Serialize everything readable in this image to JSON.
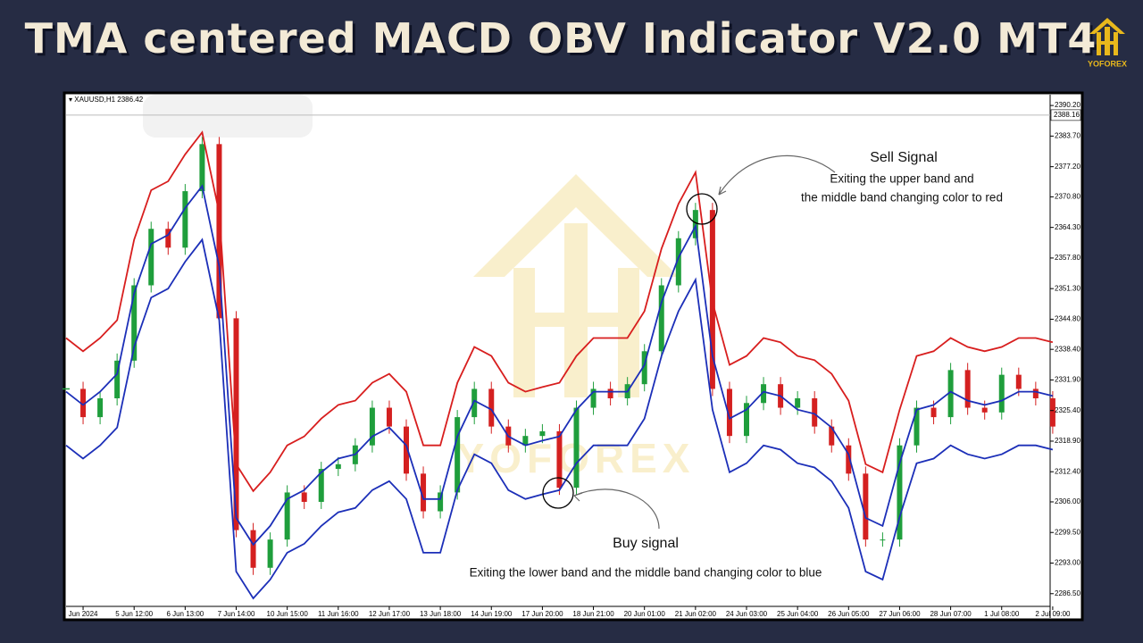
{
  "header": {
    "title": "TMA centered MACD OBV Indicator V2.0 MT4",
    "brand": "YOFOREX"
  },
  "chart_data": {
    "type": "candlestick",
    "symbol": "XAUUSD,H1",
    "bid": 2386.42,
    "current_price": 2388.16,
    "watermark": "YOFOREX",
    "up_color": "#1f9e3c",
    "down_color": "#d42020",
    "categories": [
      null,
      "Jun 2024",
      null,
      null,
      "5 Jun 12:00",
      null,
      null,
      "6 Jun 13:00",
      null,
      null,
      "7 Jun 14:00",
      null,
      null,
      "10 Jun 15:00",
      null,
      null,
      "11 Jun 16:00",
      null,
      null,
      "12 Jun 17:00",
      null,
      null,
      "13 Jun 18:00",
      null,
      null,
      "14 Jun 19:00",
      null,
      null,
      "17 Jun 20:00",
      null,
      null,
      "18 Jun 21:00",
      null,
      null,
      "20 Jun 01:00",
      null,
      null,
      "21 Jun 02:00",
      null,
      null,
      "24 Jun 03:00",
      null,
      null,
      "25 Jun 04:00",
      null,
      null,
      "26 Jun 05:00",
      null,
      null,
      "27 Jun 06:00",
      null,
      null,
      "28 Jun 07:00",
      null,
      null,
      "1 Jul 08:00",
      null,
      null,
      "2 Jul 09:00"
    ],
    "series": [
      {
        "color": "#1f9e3c",
        "values": [
          2330,
          2324,
          2328,
          2336,
          2352,
          2364,
          2360,
          2372,
          2382,
          2345,
          2300,
          2292,
          2298,
          2308,
          2306,
          2313,
          2314,
          2318,
          2326,
          2322,
          2312,
          2304,
          2308,
          2324,
          2330,
          2322,
          2318,
          2320,
          2321,
          2309,
          2326,
          2330,
          2328,
          2331,
          2338,
          2352,
          2362,
          2368,
          2330,
          2320,
          2327,
          2331,
          2326,
          2328,
          2322,
          2318,
          2312,
          2298,
          2298,
          2318,
          2326,
          2324,
          2334,
          2326,
          2325,
          2333,
          2330,
          2328,
          2322
        ]
      },
      {
        "color": "#d81e1e",
        "values": [
          2340.8,
          2338.0,
          2340.8,
          2344.6,
          2361.7,
          2372.2,
          2374.1,
          2379.8,
          2384.5,
          2367.4,
          2314.0,
          2308.3,
          2312.3,
          2318.0,
          2319.9,
          2323.7,
          2326.6,
          2327.5,
          2331.3,
          2333.2,
          2329.4,
          2318.0,
          2318.0,
          2331.3,
          2338.9,
          2337.0,
          2331.3,
          2329.4,
          2330.4,
          2331.3,
          2337.0,
          2340.8,
          2340.8,
          2340.8,
          2346.5,
          2359.8,
          2369.3,
          2376.0,
          2348.4,
          2335.1,
          2337.0,
          2340.8,
          2339.9,
          2337.0,
          2336.1,
          2333.2,
          2327.5,
          2314.0,
          2312.3,
          2325.6,
          2337.0,
          2338.0,
          2340.8,
          2338.9,
          2338.0,
          2338.9,
          2340.8,
          2340.8,
          2339.9
        ]
      },
      {
        "color": "#1c2fb8",
        "values": [
          2329.4,
          2326.6,
          2329.4,
          2333.2,
          2350.3,
          2360.8,
          2362.7,
          2368.4,
          2373.1,
          2356.0,
          2302.6,
          2296.9,
          2300.9,
          2306.6,
          2308.5,
          2312.3,
          2315.2,
          2316.1,
          2319.9,
          2321.8,
          2318.0,
          2306.6,
          2306.6,
          2319.9,
          2327.5,
          2325.6,
          2319.9,
          2318.0,
          2319.0,
          2319.9,
          2325.6,
          2329.4,
          2329.4,
          2329.4,
          2335.1,
          2348.4,
          2357.9,
          2364.6,
          2337.0,
          2323.7,
          2325.6,
          2329.4,
          2328.5,
          2325.6,
          2324.7,
          2321.8,
          2316.1,
          2302.6,
          2300.9,
          2314.2,
          2325.6,
          2326.6,
          2329.4,
          2327.5,
          2326.6,
          2327.5,
          2329.4,
          2329.4,
          2328.5
        ]
      },
      {
        "color": "#1c2fb8",
        "values": [
          2318.0,
          2315.2,
          2318.0,
          2321.8,
          2338.9,
          2349.4,
          2351.3,
          2357.0,
          2361.7,
          2344.6,
          2291.2,
          2285.5,
          2289.5,
          2295.2,
          2297.1,
          2300.9,
          2303.8,
          2304.7,
          2308.5,
          2310.4,
          2306.6,
          2295.2,
          2295.2,
          2308.5,
          2316.1,
          2314.2,
          2308.5,
          2306.6,
          2307.6,
          2308.5,
          2314.2,
          2318.0,
          2318.0,
          2318.0,
          2323.7,
          2337.0,
          2346.5,
          2353.2,
          2325.6,
          2312.3,
          2314.2,
          2318.0,
          2317.1,
          2314.2,
          2313.3,
          2310.4,
          2304.7,
          2291.2,
          2289.5,
          2302.8,
          2314.2,
          2315.2,
          2318.0,
          2316.1,
          2315.2,
          2316.1,
          2318.0,
          2318.0,
          2317.1
        ]
      }
    ],
    "ylim": [
      2283.8,
      2392.5
    ],
    "yticks": [
      {
        "value": 2390.2,
        "label": "2390.20"
      },
      {
        "value": 2383.7,
        "label": "2383.70"
      },
      {
        "value": 2377.2,
        "label": "2377.20"
      },
      {
        "value": 2370.8,
        "label": "2370.80"
      },
      {
        "value": 2364.3,
        "label": "2364.30"
      },
      {
        "value": 2357.8,
        "label": "2357.80"
      },
      {
        "value": 2351.3,
        "label": "2351.30"
      },
      {
        "value": 2344.8,
        "label": "2344.80"
      },
      {
        "value": 2338.4,
        "label": "2338.40"
      },
      {
        "value": 2331.9,
        "label": "2331.90"
      },
      {
        "value": 2325.4,
        "label": "2325.40"
      },
      {
        "value": 2318.9,
        "label": "2318.90"
      },
      {
        "value": 2312.4,
        "label": "2312.40"
      },
      {
        "value": 2306.0,
        "label": "2306.00"
      },
      {
        "value": 2299.5,
        "label": "2299.50"
      },
      {
        "value": 2293.0,
        "label": "2293.00"
      },
      {
        "value": 2286.5,
        "label": "2286.50"
      }
    ],
    "annotations": [
      {
        "title": "Sell Signal",
        "lines": [
          "Exiting the upper band and",
          "the middle band changing color to red"
        ]
      },
      {
        "title": "Buy signal",
        "lines": [
          "Exiting the lower band and the middle band changing color to blue"
        ]
      }
    ]
  }
}
